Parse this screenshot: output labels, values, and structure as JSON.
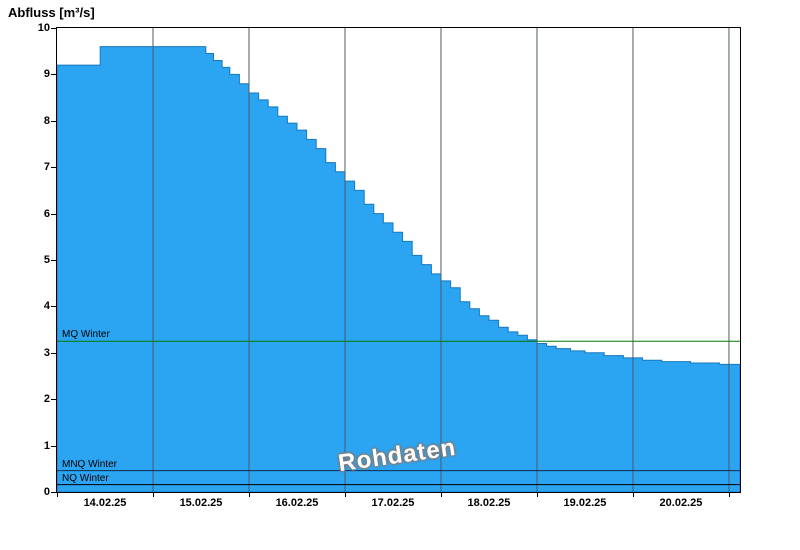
{
  "window": {
    "title": "Abfluss [m³/s]"
  },
  "watermark": "Rohdaten",
  "x_axis": {
    "labels": [
      "14.02.25",
      "15.02.25",
      "16.02.25",
      "17.02.25",
      "18.02.25",
      "19.02.25",
      "20.02.25"
    ]
  },
  "chart_data": {
    "type": "area",
    "step": true,
    "title": "Abfluss [m³/s]",
    "ylabel": "Abfluss [m³/s]",
    "xlabel": "",
    "ylim": [
      0,
      10
    ],
    "xlim": [
      0,
      7.115
    ],
    "x_unit": "days since 14.02.25 00:00",
    "y_ticks": [
      0,
      1,
      2,
      3,
      4,
      5,
      6,
      7,
      8,
      9,
      10
    ],
    "x_tick_days": [
      1,
      2,
      3,
      4,
      5,
      6,
      7
    ],
    "x_labels": [
      "14.02.25",
      "15.02.25",
      "16.02.25",
      "17.02.25",
      "18.02.25",
      "19.02.25",
      "20.02.25"
    ],
    "legend": [],
    "grid": "vertical-only",
    "points": [
      [
        0.0,
        9.2
      ],
      [
        0.45,
        9.6
      ],
      [
        1.5,
        9.6
      ],
      [
        1.55,
        9.45
      ],
      [
        1.63,
        9.3
      ],
      [
        1.72,
        9.15
      ],
      [
        1.8,
        9.0
      ],
      [
        1.9,
        8.8
      ],
      [
        2.0,
        8.6
      ],
      [
        2.1,
        8.45
      ],
      [
        2.2,
        8.3
      ],
      [
        2.3,
        8.1
      ],
      [
        2.4,
        7.95
      ],
      [
        2.5,
        7.8
      ],
      [
        2.6,
        7.6
      ],
      [
        2.7,
        7.4
      ],
      [
        2.8,
        7.1
      ],
      [
        2.9,
        6.9
      ],
      [
        3.0,
        6.7
      ],
      [
        3.1,
        6.5
      ],
      [
        3.2,
        6.2
      ],
      [
        3.3,
        6.0
      ],
      [
        3.4,
        5.8
      ],
      [
        3.5,
        5.6
      ],
      [
        3.6,
        5.4
      ],
      [
        3.7,
        5.1
      ],
      [
        3.8,
        4.9
      ],
      [
        3.9,
        4.7
      ],
      [
        4.0,
        4.55
      ],
      [
        4.1,
        4.4
      ],
      [
        4.2,
        4.1
      ],
      [
        4.3,
        3.95
      ],
      [
        4.4,
        3.8
      ],
      [
        4.5,
        3.7
      ],
      [
        4.6,
        3.55
      ],
      [
        4.7,
        3.45
      ],
      [
        4.8,
        3.38
      ],
      [
        4.9,
        3.28
      ],
      [
        5.0,
        3.2
      ],
      [
        5.1,
        3.14
      ],
      [
        5.2,
        3.09
      ],
      [
        5.35,
        3.04
      ],
      [
        5.5,
        3.0
      ],
      [
        5.7,
        2.94
      ],
      [
        5.9,
        2.89
      ],
      [
        6.1,
        2.84
      ],
      [
        6.3,
        2.81
      ],
      [
        6.6,
        2.78
      ],
      [
        6.9,
        2.75
      ],
      [
        7.11,
        2.74
      ]
    ],
    "ref_lines": [
      {
        "label": "MQ Winter",
        "value": 3.25,
        "color": "#007A00"
      },
      {
        "label": "MNQ Winter",
        "value": 0.46,
        "color": "#0A2C50"
      },
      {
        "label": "NQ Winter",
        "value": 0.16,
        "color": "#000000"
      }
    ],
    "colors": {
      "fill": "#2BA4F2",
      "stroke": "#1878BC",
      "grid": "#4D5B6B"
    }
  }
}
